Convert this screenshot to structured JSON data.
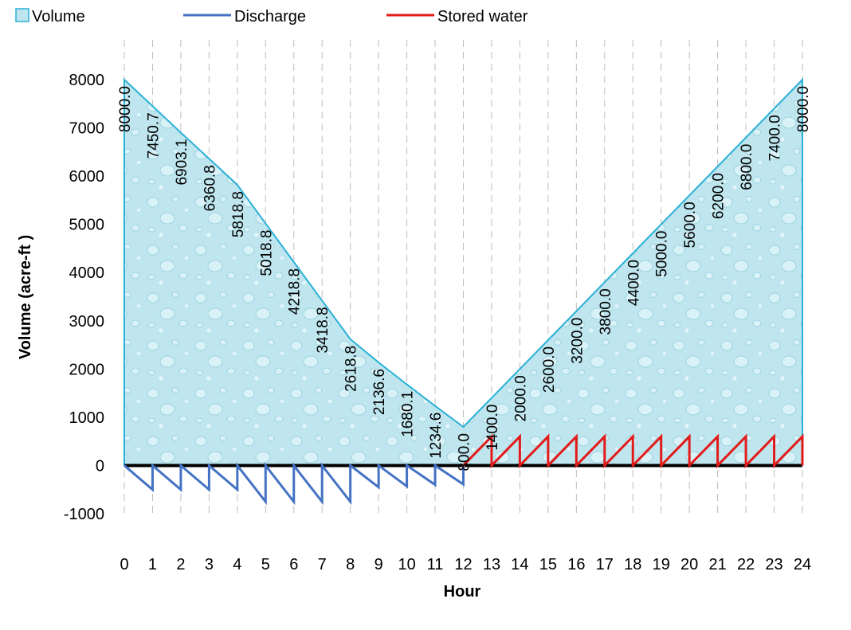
{
  "chart_data": {
    "type": "area",
    "title": "",
    "xlabel": "Hour",
    "ylabel": "Volume (acre-ft )",
    "xlim": [
      0,
      24
    ],
    "ylim": [
      -1000,
      8000
    ],
    "y_ticks": [
      -1000,
      0,
      1000,
      2000,
      3000,
      4000,
      5000,
      6000,
      7000,
      8000
    ],
    "x_ticks": [
      0,
      1,
      2,
      3,
      4,
      5,
      6,
      7,
      8,
      9,
      10,
      11,
      12,
      13,
      14,
      15,
      16,
      17,
      18,
      19,
      20,
      21,
      22,
      23,
      24
    ],
    "grid": "vertical dashed",
    "legend_position": "top",
    "legend": [
      "Volume",
      "Discharge",
      "Stored water"
    ],
    "colors": {
      "volume_fill": "#bfe6ef",
      "volume_line": "#2ab0d6",
      "discharge": "#4472c4",
      "stored": "#e31a1a",
      "zero_line": "#000000"
    },
    "series": [
      {
        "name": "Volume",
        "type": "area",
        "x": [
          0,
          1,
          2,
          3,
          4,
          5,
          6,
          7,
          8,
          9,
          10,
          11,
          12,
          13,
          14,
          15,
          16,
          17,
          18,
          19,
          20,
          21,
          22,
          23,
          24
        ],
        "values": [
          8000.0,
          7450.7,
          6903.1,
          6360.8,
          5818.8,
          5018.8,
          4218.8,
          3418.8,
          2618.8,
          2136.6,
          1680.1,
          1234.6,
          800.0,
          1400.0,
          2000.0,
          2600.0,
          3200.0,
          3800.0,
          4400.0,
          5000.0,
          5600.0,
          6200.0,
          6800.0,
          7400.0,
          8000.0
        ],
        "data_labels": [
          "8000.0",
          "7450.7",
          "6903.1",
          "6360.8",
          "5818.8",
          "5018.8",
          "4218.8",
          "3418.8",
          "2618.8",
          "2136.6",
          "1680.1",
          "1234.6",
          "800.0",
          "1400.0",
          "2000.0",
          "2600.0",
          "3200.0",
          "3800.0",
          "4400.0",
          "5000.0",
          "5600.0",
          "6200.0",
          "6800.0",
          "7400.0",
          "8000.0"
        ]
      },
      {
        "name": "Discharge",
        "type": "line",
        "x": [
          0,
          1,
          1,
          2,
          2,
          3,
          3,
          4,
          4,
          5,
          5,
          6,
          6,
          7,
          7,
          8,
          8,
          9,
          9,
          10,
          10,
          11,
          11,
          12,
          12
        ],
        "values": [
          0,
          -500,
          0,
          -500,
          0,
          -500,
          0,
          -500,
          0,
          -750,
          0,
          -750,
          0,
          -750,
          0,
          -750,
          0,
          -450,
          0,
          -430,
          0,
          -400,
          0,
          -390,
          0
        ]
      },
      {
        "name": "Stored water",
        "type": "line",
        "x": [
          12,
          13,
          13,
          14,
          14,
          15,
          15,
          16,
          16,
          17,
          17,
          18,
          18,
          19,
          19,
          20,
          20,
          21,
          21,
          22,
          22,
          23,
          23,
          24,
          24
        ],
        "values": [
          0,
          600,
          0,
          600,
          0,
          600,
          0,
          600,
          0,
          600,
          0,
          600,
          0,
          600,
          0,
          600,
          0,
          600,
          0,
          600,
          0,
          600,
          0,
          600,
          0
        ]
      }
    ]
  }
}
